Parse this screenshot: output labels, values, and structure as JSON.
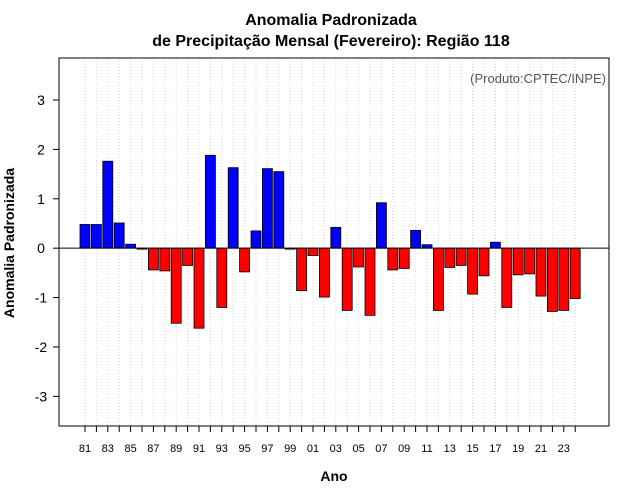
{
  "chart_data": {
    "type": "bar",
    "title": "Anomalia Padronizada",
    "subtitle": "de Precipitação Mensal (Fevereiro): Região 118",
    "xlabel": "Ano",
    "ylabel": "Anomalia Padronizada",
    "credit": "(Produto:CPTEC/INPE)",
    "ylim": [
      -3.6,
      3.85
    ],
    "yticks": [
      -3,
      -2,
      -1,
      0,
      1,
      2,
      3
    ],
    "grid": "vertical dotted",
    "positive_color": "#0000ff",
    "negative_color": "#ff0000",
    "categories": [
      "81",
      "82",
      "83",
      "84",
      "85",
      "86",
      "87",
      "88",
      "89",
      "90",
      "91",
      "92",
      "93",
      "94",
      "95",
      "96",
      "97",
      "98",
      "99",
      "00",
      "01",
      "02",
      "03",
      "04",
      "05",
      "06",
      "07",
      "08",
      "09",
      "10",
      "11",
      "12",
      "13",
      "14",
      "15",
      "16",
      "17",
      "18",
      "19",
      "20",
      "21",
      "22",
      "23",
      "24"
    ],
    "tick_labels": [
      "81",
      "83",
      "85",
      "87",
      "89",
      "91",
      "93",
      "95",
      "97",
      "99",
      "01",
      "03",
      "05",
      "07",
      "09",
      "11",
      "13",
      "15",
      "17",
      "19",
      "21",
      "23"
    ],
    "values": [
      0.48,
      0.48,
      1.76,
      0.51,
      0.08,
      -0.02,
      -0.44,
      -0.46,
      -1.52,
      -0.35,
      -1.62,
      1.88,
      -1.2,
      1.63,
      -0.48,
      0.35,
      1.61,
      1.55,
      -0.02,
      -0.86,
      -0.15,
      -0.99,
      0.42,
      -1.26,
      -0.38,
      -1.36,
      0.92,
      -0.44,
      -0.41,
      0.36,
      0.07,
      -1.26,
      -0.39,
      -0.35,
      -0.93,
      -0.56,
      0.12,
      -1.2,
      -0.54,
      -0.52,
      -0.97,
      -1.28,
      -1.26,
      -1.02
    ]
  }
}
